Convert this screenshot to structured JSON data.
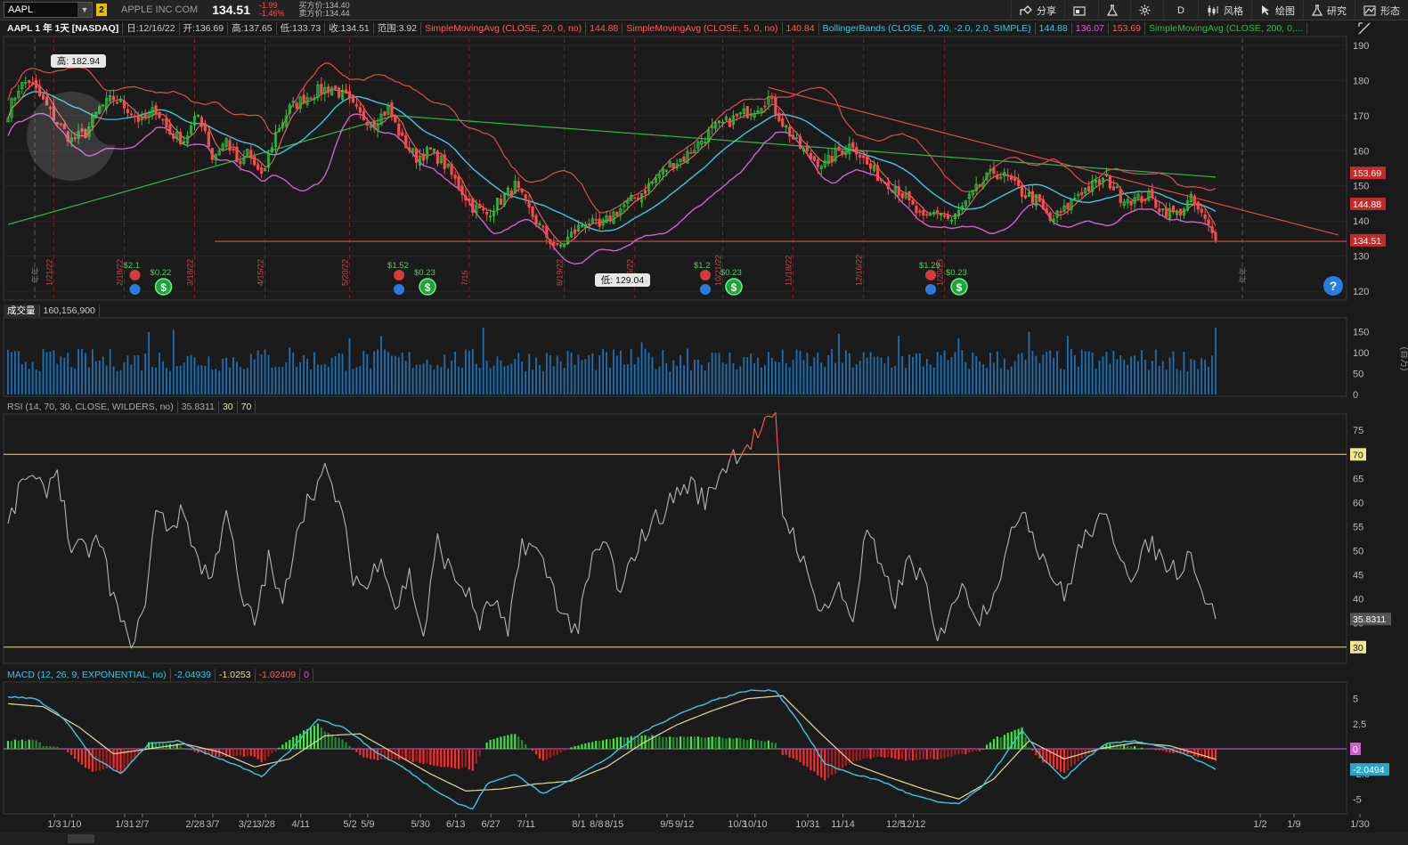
{
  "toolbar": {
    "symbol": "AAPL",
    "link_number": "2",
    "company": "APPLE INC COM",
    "last": "134.51",
    "change": "-1.99",
    "change_pct": "-1.46%",
    "bid": "买方价:134.40",
    "ask": "卖方价:134.44",
    "buttons": [
      "分享",
      "",
      "",
      "",
      "D",
      "风格",
      "绘图",
      "研究",
      "形态"
    ]
  },
  "price_header": {
    "title": "AAPL 1 年 1天 [NASDAQ]",
    "date": "日:12/16/22",
    "open": "开:136.69",
    "high": "高:137.65",
    "low": "低:133.73",
    "close": "收:134.51",
    "range": "范围:3.92",
    "sma20": "SimpleMovingAvg (CLOSE, 20, 0, no)",
    "sma20_val": "144.88",
    "sma5": "SimpleMovingAvg (CLOSE, 5, 0, no)",
    "sma5_val": "140.84",
    "bb": "BollingerBands (CLOSE, 0, 20, -2.0, 2.0, SIMPLE)",
    "bb_mid": "144.88",
    "bb_low": "136.07",
    "bb_up": "153.69",
    "sma200": "SimpleMovingAvg (CLOSE, 200, 0,..."
  },
  "volume_header": {
    "title": "成交量",
    "value": "160,156,900"
  },
  "volume_unit": "(百万)",
  "rsi_header": {
    "title": "RSI (14, 70, 30, CLOSE, WILDERS, no)",
    "value": "35.8311",
    "low": "30",
    "high": "70"
  },
  "macd_header": {
    "title": "MACD (12, 26, 9, EXPONENTIAL, no)",
    "value": "-2.04939",
    "avg": "-1.0253",
    "diff": "-1.02409",
    "zero": "0"
  },
  "annotations": {
    "high": "高: 182.94",
    "low": "低: 129.04",
    "year_mark": "年年"
  },
  "price_badges": {
    "bb_up": "153.69",
    "sma20": "144.88",
    "close": "134.51"
  },
  "rsi_badges": {
    "high": "70",
    "value": "35.8311",
    "low": "30"
  },
  "macd_badges": {
    "zero": "0",
    "value": "-2.0494"
  },
  "events": [
    {
      "div": "$2.1",
      "eps": "$0.22"
    },
    {
      "div": "$1.52",
      "eps": "$0.23"
    },
    {
      "div": "$1.2",
      "eps": "$0.23"
    },
    {
      "div": "$1.29",
      "eps": "$0.23"
    }
  ],
  "vertical_date_labels": [
    "1/21/22",
    "2/18/22",
    "3/18/22",
    "4/15/22",
    "5/20/22",
    "7/15",
    "8/19/22",
    "9/16/22",
    "10/21/22",
    "11/18/22",
    "12/16/22",
    "1/20/23"
  ],
  "colors": {
    "up": "#27c83a",
    "down": "#ff4a4a",
    "sma20": "#3cc8e0",
    "sma5": "#ff6b6b",
    "bb": "#e24c4c",
    "bbmid": "#d060d0",
    "sma200": "#2fb84a",
    "volume": "#1f6fb3",
    "rsi": "#b5b5b5",
    "macd": "#38c8e6",
    "signal": "#e8d8a0"
  },
  "icons": {
    "share": "share-icon",
    "settings": "gear-icon",
    "flask": "flask-icon",
    "help": "help-icon"
  },
  "chart_data": [
    {
      "type": "candlestick",
      "title": "AAPL 1 年 1天 [NASDAQ]",
      "ylim": [
        118,
        192
      ],
      "y_ticks": [
        120,
        130,
        140,
        150,
        160,
        170,
        180,
        190
      ],
      "x_ticks": [
        "1/3",
        "1/10",
        "1/31",
        "2/7",
        "2/28",
        "3/7",
        "3/21",
        "3/28",
        "4/11",
        "5/2",
        "5/9",
        "5/30",
        "6/13",
        "6/27",
        "7/11",
        "8/1",
        "8/8",
        "8/15",
        "9/5",
        "9/12",
        "10/3",
        "10/10",
        "10/31",
        "11/14",
        "12/5",
        "12/12",
        "1/2",
        "1/9",
        "1/30"
      ],
      "close_anchor_points": [
        [
          0,
          171
        ],
        [
          3,
          178
        ],
        [
          6,
          180
        ],
        [
          10,
          174
        ],
        [
          14,
          168
        ],
        [
          18,
          163
        ],
        [
          22,
          165
        ],
        [
          26,
          172
        ],
        [
          30,
          175
        ],
        [
          34,
          172
        ],
        [
          38,
          168
        ],
        [
          42,
          172
        ],
        [
          46,
          165
        ],
        [
          50,
          163
        ],
        [
          54,
          170
        ],
        [
          56,
          166
        ],
        [
          58,
          158
        ],
        [
          62,
          163
        ],
        [
          66,
          155
        ],
        [
          68,
          160
        ],
        [
          72,
          152
        ],
        [
          76,
          165
        ],
        [
          80,
          172
        ],
        [
          84,
          175
        ],
        [
          88,
          177
        ],
        [
          92,
          178
        ],
        [
          96,
          175
        ],
        [
          100,
          170
        ],
        [
          104,
          168
        ],
        [
          108,
          172
        ],
        [
          112,
          163
        ],
        [
          116,
          158
        ],
        [
          120,
          160
        ],
        [
          124,
          156
        ],
        [
          128,
          150
        ],
        [
          132,
          144
        ],
        [
          136,
          142
        ],
        [
          140,
          146
        ],
        [
          144,
          150
        ],
        [
          148,
          143
        ],
        [
          152,
          137
        ],
        [
          156,
          132
        ],
        [
          160,
          136
        ],
        [
          164,
          140
        ],
        [
          168,
          138
        ],
        [
          172,
          142
        ],
        [
          176,
          145
        ],
        [
          180,
          148
        ],
        [
          184,
          152
        ],
        [
          188,
          156
        ],
        [
          192,
          158
        ],
        [
          196,
          162
        ],
        [
          200,
          166
        ],
        [
          204,
          168
        ],
        [
          208,
          170
        ],
        [
          212,
          172
        ],
        [
          216,
          175
        ],
        [
          220,
          168
        ],
        [
          224,
          162
        ],
        [
          228,
          158
        ],
        [
          232,
          156
        ],
        [
          236,
          160
        ],
        [
          240,
          162
        ],
        [
          244,
          156
        ],
        [
          248,
          152
        ],
        [
          252,
          150
        ],
        [
          256,
          145
        ],
        [
          260,
          140
        ],
        [
          264,
          143
        ],
        [
          268,
          140
        ],
        [
          272,
          145
        ],
        [
          276,
          150
        ],
        [
          280,
          154
        ],
        [
          284,
          152
        ],
        [
          288,
          148
        ],
        [
          292,
          146
        ],
        [
          296,
          140
        ],
        [
          300,
          143
        ],
        [
          304,
          148
        ],
        [
          308,
          150
        ],
        [
          312,
          152
        ],
        [
          316,
          147
        ],
        [
          320,
          146
        ],
        [
          324,
          147
        ],
        [
          328,
          143
        ],
        [
          332,
          142
        ],
        [
          336,
          146
        ],
        [
          340,
          140
        ],
        [
          343,
          134.51
        ]
      ],
      "sma200_endpoints": [
        [
          0,
          139
        ],
        [
          110,
          170
        ],
        [
          343,
          152.5
        ]
      ],
      "trendline_down": [
        [
          216,
          178
        ],
        [
          380,
          136
        ]
      ],
      "support_line": 134.2,
      "annotations": {
        "high": 182.94,
        "low": 129.04
      },
      "last": {
        "close": 134.51,
        "sma20": 144.88,
        "bb_up": 153.69,
        "bb_low": 136.07,
        "sma5": 140.84
      }
    },
    {
      "type": "bar",
      "name": "成交量",
      "ylim": [
        0,
        175
      ],
      "y_ticks": [
        0,
        50,
        100,
        150
      ],
      "last": 160.16
    },
    {
      "type": "line",
      "name": "RSI",
      "ylim": [
        27,
        78
      ],
      "y_ticks": [
        35,
        40,
        45,
        50,
        55,
        60,
        65,
        70,
        75
      ],
      "levels": [
        30,
        70
      ],
      "anchor_points": [
        [
          0,
          55
        ],
        [
          5,
          66
        ],
        [
          10,
          62
        ],
        [
          14,
          67
        ],
        [
          18,
          50
        ],
        [
          22,
          50
        ],
        [
          26,
          52
        ],
        [
          30,
          40
        ],
        [
          34,
          31
        ],
        [
          38,
          35
        ],
        [
          42,
          58
        ],
        [
          46,
          55
        ],
        [
          50,
          58
        ],
        [
          54,
          48
        ],
        [
          58,
          44
        ],
        [
          62,
          60
        ],
        [
          66,
          40
        ],
        [
          70,
          35
        ],
        [
          74,
          48
        ],
        [
          78,
          38
        ],
        [
          82,
          55
        ],
        [
          86,
          62
        ],
        [
          90,
          66
        ],
        [
          94,
          60
        ],
        [
          98,
          45
        ],
        [
          102,
          42
        ],
        [
          106,
          50
        ],
        [
          110,
          38
        ],
        [
          114,
          45
        ],
        [
          118,
          32
        ],
        [
          122,
          52
        ],
        [
          126,
          45
        ],
        [
          130,
          42
        ],
        [
          134,
          35
        ],
        [
          138,
          40
        ],
        [
          142,
          32
        ],
        [
          146,
          52
        ],
        [
          150,
          50
        ],
        [
          154,
          44
        ],
        [
          158,
          36
        ],
        [
          162,
          34
        ],
        [
          166,
          48
        ],
        [
          170,
          52
        ],
        [
          174,
          40
        ],
        [
          178,
          50
        ],
        [
          182,
          55
        ],
        [
          186,
          58
        ],
        [
          190,
          62
        ],
        [
          194,
          64
        ],
        [
          198,
          60
        ],
        [
          202,
          66
        ],
        [
          206,
          70
        ],
        [
          210,
          72
        ],
        [
          214,
          75
        ],
        [
          218,
          77
        ],
        [
          220,
          58
        ],
        [
          224,
          52
        ],
        [
          228,
          42
        ],
        [
          232,
          38
        ],
        [
          236,
          42
        ],
        [
          240,
          36
        ],
        [
          244,
          55
        ],
        [
          248,
          45
        ],
        [
          252,
          40
        ],
        [
          256,
          48
        ],
        [
          260,
          44
        ],
        [
          264,
          30
        ],
        [
          268,
          40
        ],
        [
          272,
          42
        ],
        [
          276,
          36
        ],
        [
          280,
          42
        ],
        [
          284,
          50
        ],
        [
          288,
          60
        ],
        [
          292,
          52
        ],
        [
          296,
          46
        ],
        [
          300,
          40
        ],
        [
          304,
          50
        ],
        [
          308,
          55
        ],
        [
          312,
          56
        ],
        [
          316,
          50
        ],
        [
          320,
          44
        ],
        [
          324,
          52
        ],
        [
          328,
          48
        ],
        [
          332,
          46
        ],
        [
          336,
          50
        ],
        [
          340,
          40
        ],
        [
          343,
          35.83
        ]
      ],
      "last": 35.8311
    },
    {
      "type": "line",
      "name": "MACD",
      "ylim": [
        -6.3,
        6.3
      ],
      "y_ticks": [
        -5,
        -2.5,
        0,
        2.5,
        5
      ],
      "macd_anchor_points": [
        [
          0,
          5.2
        ],
        [
          8,
          5
        ],
        [
          16,
          3
        ],
        [
          24,
          -0.8
        ],
        [
          32,
          -2.5
        ],
        [
          40,
          0.5
        ],
        [
          48,
          0.8
        ],
        [
          56,
          -0.4
        ],
        [
          64,
          -1.5
        ],
        [
          72,
          -2.8
        ],
        [
          80,
          -0.2
        ],
        [
          88,
          3.0
        ],
        [
          96,
          2.0
        ],
        [
          104,
          -0.2
        ],
        [
          112,
          -1.8
        ],
        [
          120,
          -3.8
        ],
        [
          128,
          -5.5
        ],
        [
          132,
          -6.0
        ],
        [
          136,
          -3.5
        ],
        [
          144,
          -2.5
        ],
        [
          152,
          -4.5
        ],
        [
          160,
          -3.0
        ],
        [
          170,
          -1.0
        ],
        [
          180,
          1.6
        ],
        [
          190,
          3.4
        ],
        [
          200,
          4.8
        ],
        [
          210,
          5.8
        ],
        [
          218,
          5.8
        ],
        [
          224,
          3.0
        ],
        [
          232,
          -1.5
        ],
        [
          240,
          -2.5
        ],
        [
          248,
          -3.2
        ],
        [
          256,
          -4.5
        ],
        [
          264,
          -5.3
        ],
        [
          270,
          -5.5
        ],
        [
          276,
          -4.0
        ],
        [
          282,
          -1.2
        ],
        [
          288,
          1.8
        ],
        [
          294,
          -1.0
        ],
        [
          300,
          -3.0
        ],
        [
          306,
          -1.0
        ],
        [
          312,
          0.5
        ],
        [
          320,
          0.8
        ],
        [
          328,
          0.2
        ],
        [
          336,
          -0.8
        ],
        [
          343,
          -2.05
        ]
      ],
      "signal_anchor_points": [
        [
          0,
          4.5
        ],
        [
          10,
          4.2
        ],
        [
          20,
          2.2
        ],
        [
          30,
          -0.5
        ],
        [
          40,
          0
        ],
        [
          50,
          0.5
        ],
        [
          60,
          -0.3
        ],
        [
          70,
          -1.8
        ],
        [
          80,
          -1.0
        ],
        [
          90,
          1.3
        ],
        [
          100,
          1.5
        ],
        [
          110,
          -0.5
        ],
        [
          120,
          -2.5
        ],
        [
          130,
          -4.2
        ],
        [
          140,
          -4.0
        ],
        [
          150,
          -3.5
        ],
        [
          160,
          -3.2
        ],
        [
          170,
          -1.8
        ],
        [
          180,
          0.5
        ],
        [
          190,
          2.4
        ],
        [
          200,
          3.8
        ],
        [
          210,
          5.0
        ],
        [
          220,
          5.3
        ],
        [
          230,
          1.8
        ],
        [
          240,
          -1.5
        ],
        [
          250,
          -2.8
        ],
        [
          260,
          -4.0
        ],
        [
          270,
          -5.0
        ],
        [
          280,
          -3.0
        ],
        [
          290,
          0.8
        ],
        [
          300,
          -1.0
        ],
        [
          310,
          0
        ],
        [
          320,
          0.6
        ],
        [
          330,
          0.3
        ],
        [
          343,
          -1.03
        ]
      ],
      "last": {
        "macd": -2.04939,
        "signal": -1.0253,
        "diff": -1.02409
      }
    }
  ]
}
